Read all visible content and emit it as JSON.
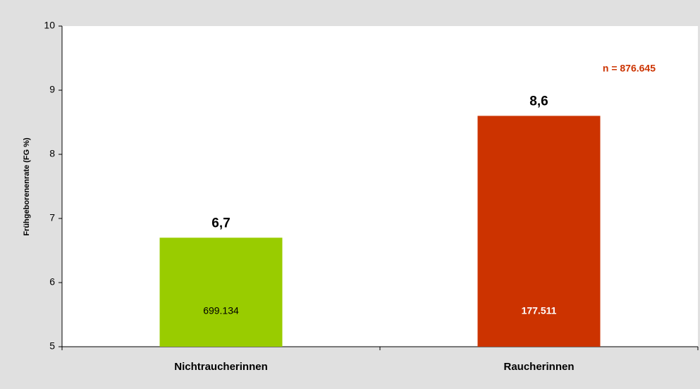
{
  "chart_data": {
    "type": "bar",
    "ylabel": "Frühgeborenenrate (FG %)",
    "categories": [
      "Nichtraucherinnen",
      "Raucherinnen"
    ],
    "values": [
      6.7,
      8.6
    ],
    "value_labels": [
      "6,7",
      "8,6"
    ],
    "bar_labels": [
      "699.134",
      "177.511"
    ],
    "colors": [
      "#99cc00",
      "#cc3300"
    ],
    "annotation": "n = 876.645",
    "ylim": [
      5,
      10
    ],
    "yticks": [
      5,
      6,
      7,
      8,
      9,
      10
    ]
  }
}
